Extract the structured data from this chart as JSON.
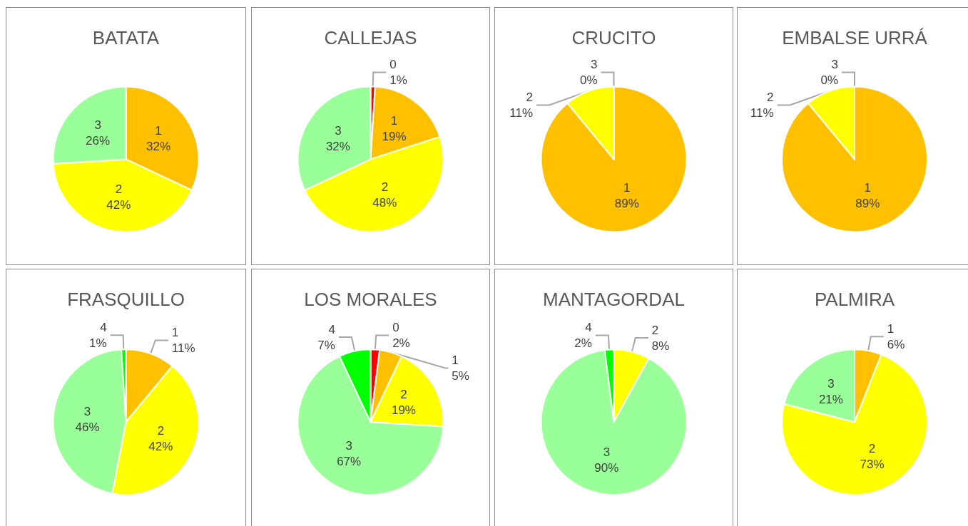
{
  "chart_data": [
    {
      "type": "pie",
      "title": "BATATA",
      "categories": [
        "1",
        "2",
        "3"
      ],
      "values": [
        32,
        42,
        26
      ],
      "value_labels": [
        "32%",
        "42%",
        "26%"
      ],
      "colors": [
        "#ffc000",
        "#ffff00",
        "#99ff99"
      ]
    },
    {
      "type": "pie",
      "title": "CALLEJAS",
      "categories": [
        "0",
        "1",
        "2",
        "3"
      ],
      "values": [
        1,
        19,
        48,
        32
      ],
      "value_labels": [
        "1%",
        "19%",
        "48%",
        "32%"
      ],
      "colors": [
        "#ff0000",
        "#ffc000",
        "#ffff00",
        "#99ff99"
      ]
    },
    {
      "type": "pie",
      "title": "CRUCITO",
      "categories": [
        "1",
        "2",
        "3"
      ],
      "values": [
        89,
        11,
        0
      ],
      "value_labels": [
        "89%",
        "11%",
        "0%"
      ],
      "colors": [
        "#ffc000",
        "#ffff00",
        "#99ff99"
      ]
    },
    {
      "type": "pie",
      "title": "EMBALSE URRÁ",
      "categories": [
        "1",
        "2",
        "3"
      ],
      "values": [
        89,
        11,
        0
      ],
      "value_labels": [
        "89%",
        "11%",
        "0%"
      ],
      "colors": [
        "#ffc000",
        "#ffff00",
        "#99ff99"
      ]
    },
    {
      "type": "pie",
      "title": "FRASQUILLO",
      "categories": [
        "1",
        "2",
        "3",
        "4"
      ],
      "values": [
        11,
        42,
        46,
        1
      ],
      "value_labels": [
        "11%",
        "42%",
        "46%",
        "1%"
      ],
      "colors": [
        "#ffc000",
        "#ffff00",
        "#99ff99",
        "#00ff00"
      ]
    },
    {
      "type": "pie",
      "title": "LOS MORALES",
      "categories": [
        "0",
        "1",
        "2",
        "3",
        "4"
      ],
      "values": [
        2,
        5,
        19,
        67,
        7
      ],
      "value_labels": [
        "2%",
        "5%",
        "19%",
        "67%",
        "7%"
      ],
      "colors": [
        "#ff0000",
        "#ffc000",
        "#ffff00",
        "#99ff99",
        "#00ff00"
      ]
    },
    {
      "type": "pie",
      "title": "MANTAGORDAL",
      "categories": [
        "2",
        "3",
        "4"
      ],
      "values": [
        8,
        90,
        2
      ],
      "value_labels": [
        "8%",
        "90%",
        "2%"
      ],
      "colors": [
        "#ffff00",
        "#99ff99",
        "#00ff00"
      ]
    },
    {
      "type": "pie",
      "title": "PALMIRA",
      "categories": [
        "1",
        "2",
        "3"
      ],
      "values": [
        6,
        73,
        21
      ],
      "value_labels": [
        "6%",
        "73%",
        "21%"
      ],
      "colors": [
        "#ffc000",
        "#ffff00",
        "#99ff99"
      ]
    }
  ]
}
